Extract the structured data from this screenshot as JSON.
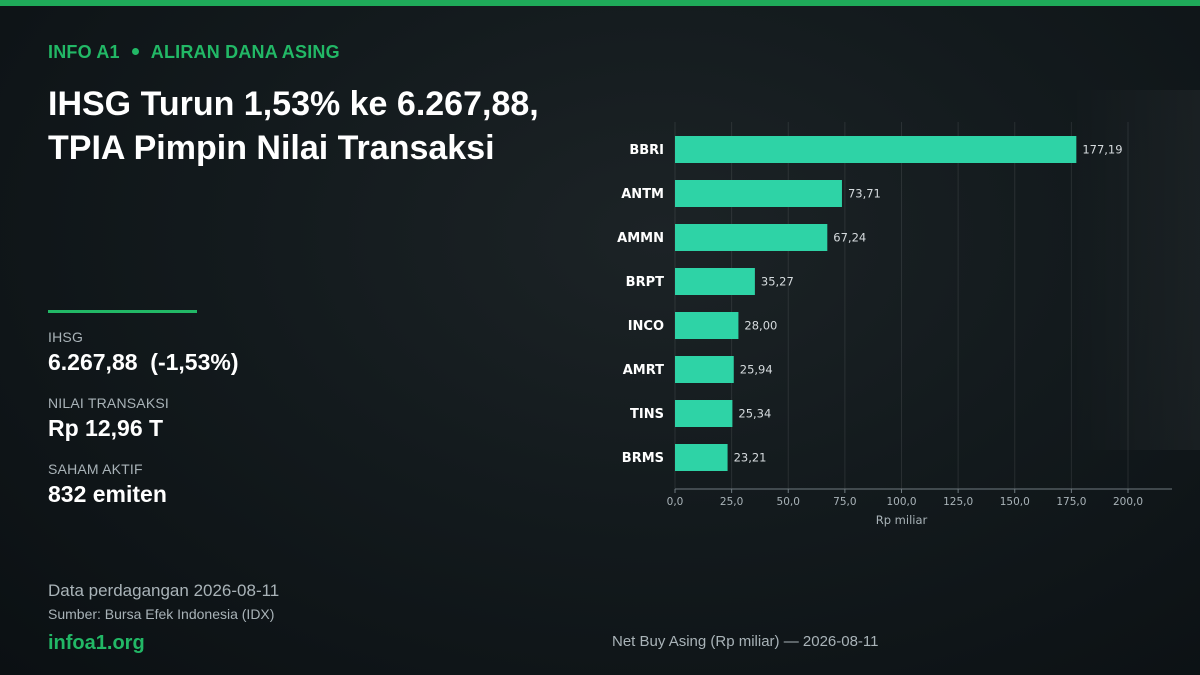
{
  "header": {
    "brand": "INFO A1",
    "section": "ALIRAN DANA ASING",
    "headline": "IHSG Turun 1,53% ke 6.267,88, TPIA Pimpin Nilai Transaksi"
  },
  "stats": [
    {
      "label": "IHSG",
      "value": "6.267,88  (-1,53%)"
    },
    {
      "label": "NILAI TRANSAKSI",
      "value": "Rp 12,96 T"
    },
    {
      "label": "SAHAM AKTIF",
      "value": "832 emiten"
    }
  ],
  "footer": {
    "date_line": "Data perdagangan 2026-08-11",
    "source": "Sumber: Bursa Efek Indonesia (IDX)",
    "site": "infoa1.org"
  },
  "colors": {
    "accent": "#22b866",
    "bar": "#2ed3a6",
    "muted": "#a9b3b8"
  },
  "chart_data": {
    "type": "bar",
    "orientation": "horizontal",
    "caption": "Net Buy Asing (Rp miliar) — 2026-08-11",
    "categories": [
      "BBRI",
      "ANTM",
      "AMMN",
      "BRPT",
      "INCO",
      "AMRT",
      "TINS",
      "BRMS"
    ],
    "values": [
      177.19,
      73.71,
      67.24,
      35.27,
      28.0,
      25.94,
      25.34,
      23.21
    ],
    "value_labels": [
      "177,19",
      "73,71",
      "67,24",
      "35,27",
      "28,00",
      "25,94",
      "25,34",
      "23,21"
    ],
    "xlabel": "Rp miliar",
    "xlim": [
      0,
      200
    ],
    "xticks": [
      0,
      25,
      50,
      75,
      100,
      125,
      150,
      175,
      200
    ],
    "xtick_labels": [
      "0,0",
      "25,0",
      "50,0",
      "75,0",
      "100,0",
      "125,0",
      "150,0",
      "175,0",
      "200,0"
    ],
    "grid": "vertical"
  }
}
